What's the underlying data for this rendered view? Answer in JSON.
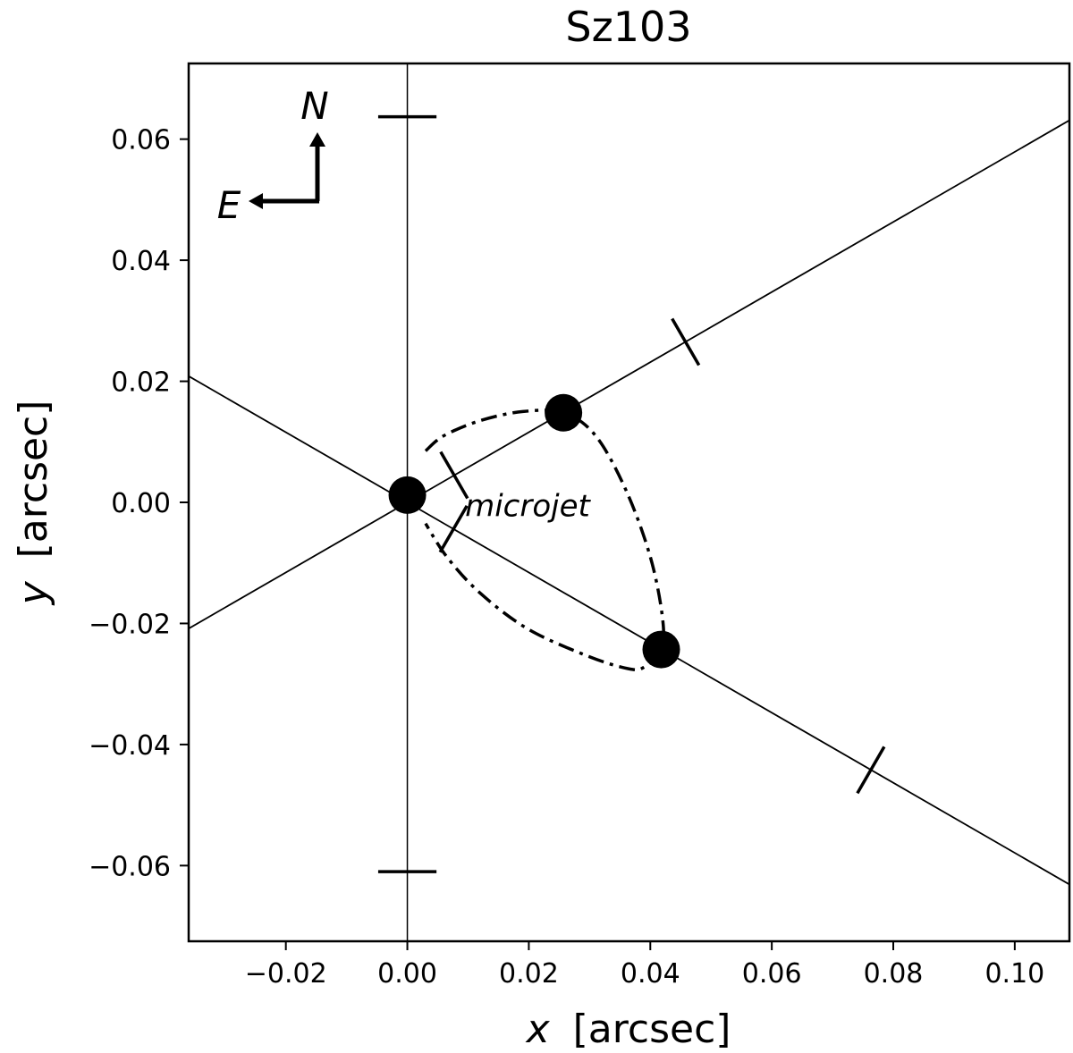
{
  "chart_data": {
    "type": "scatter",
    "title": "Sz103",
    "xlabel_var": "x",
    "xlabel_unit": "[arcsec]",
    "ylabel_var": "y",
    "ylabel_unit": "[arcsec]",
    "xlim": [
      -0.036,
      0.109
    ],
    "ylim": [
      -0.0725,
      0.0725
    ],
    "x_ticks": [
      -0.02,
      0.0,
      0.02,
      0.04,
      0.06,
      0.08,
      0.1
    ],
    "x_tick_labels": [
      "−0.02",
      "0.00",
      "0.02",
      "0.04",
      "0.06",
      "0.08",
      "0.10"
    ],
    "y_ticks": [
      0.06,
      0.04,
      0.02,
      0.0,
      -0.02,
      -0.04,
      -0.06
    ],
    "y_tick_labels": [
      "0.06",
      "0.04",
      "0.02",
      "0.00",
      "−0.02",
      "−0.04",
      "−0.06"
    ],
    "grid": false,
    "points": [
      {
        "x": 0.0,
        "y": 0.0012
      },
      {
        "x": 0.0257,
        "y": 0.0148
      },
      {
        "x": 0.0418,
        "y": -0.0243
      }
    ],
    "lines": [
      {
        "slope": 0.579,
        "intercept": 0.0
      },
      {
        "slope": -0.579,
        "intercept": 0.0
      }
    ],
    "vertical_line_x": 0.0,
    "vertical_caps": [
      {
        "x": 0.0,
        "y": 0.0637,
        "half_width": 0.0048
      },
      {
        "x": 0.0,
        "y": -0.061,
        "half_width": 0.0048
      }
    ],
    "perpendicular_ticks": [
      {
        "x": 0.0458,
        "y": 0.0265,
        "slope": 0.579
      },
      {
        "x": 0.0763,
        "y": -0.0442,
        "slope": -0.579
      },
      {
        "x": 0.0077,
        "y": 0.0045,
        "slope": 0.579
      },
      {
        "x": 0.0076,
        "y": -0.0044,
        "slope": -0.579
      }
    ],
    "dashdot_curve": [
      [
        0.003,
        0.0085
      ],
      [
        0.006,
        0.011
      ],
      [
        0.012,
        0.0135
      ],
      [
        0.019,
        0.015
      ],
      [
        0.0257,
        0.0148
      ],
      [
        0.031,
        0.011
      ],
      [
        0.036,
        0.002
      ],
      [
        0.04,
        -0.009
      ],
      [
        0.042,
        -0.019
      ],
      [
        0.0418,
        -0.0243
      ],
      [
        0.039,
        -0.0272
      ],
      [
        0.0365,
        -0.0275
      ],
      [
        0.03,
        -0.0255
      ],
      [
        0.02,
        -0.021
      ],
      [
        0.012,
        -0.015
      ],
      [
        0.0065,
        -0.009
      ],
      [
        0.003,
        -0.0035
      ]
    ],
    "annotation": "microjet",
    "annotation_pos": {
      "x": 0.0095,
      "y": -0.0005
    },
    "compass": {
      "north": "N",
      "east": "E"
    }
  }
}
